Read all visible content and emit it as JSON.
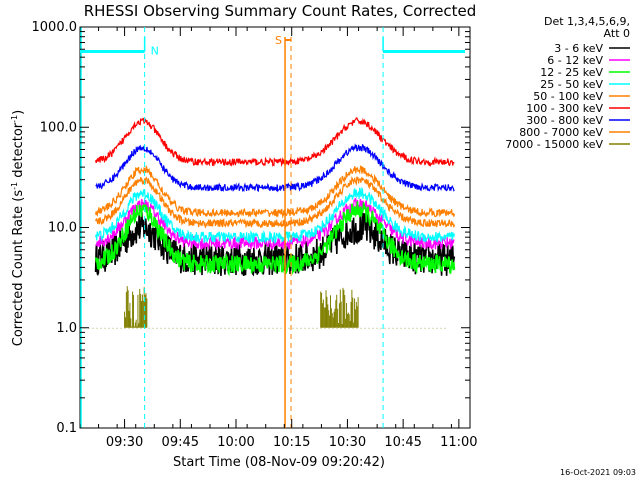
{
  "chart_data": {
    "type": "line",
    "title": "RHESSI Observing Summary Count Rates, Corrected",
    "xlabel": "Start Time (08-Nov-09 09:20:42)",
    "ylabel_main": "Corrected Count Rate (s",
    "ylabel_sup1": "-1",
    "ylabel_mid": " detector",
    "ylabel_sup2": "-1",
    "ylabel_end": ")",
    "y_scale": "log",
    "ylim": [
      0.1,
      1000
    ],
    "xlim_minutes": [
      9.3,
      11.05
    ],
    "x_ticks": [
      {
        "label": "09:30",
        "hour": 9.5
      },
      {
        "label": "09:45",
        "hour": 9.75
      },
      {
        "label": "10:00",
        "hour": 10.0
      },
      {
        "label": "10:15",
        "hour": 10.25
      },
      {
        "label": "10:30",
        "hour": 10.5
      },
      {
        "label": "10:45",
        "hour": 10.75
      },
      {
        "label": "11:00",
        "hour": 11.0
      }
    ],
    "y_ticks": [
      {
        "label": "0.1",
        "value": 0.1
      },
      {
        "label": "1.0",
        "value": 1.0
      },
      {
        "label": "10.0",
        "value": 10.0
      },
      {
        "label": "100.0",
        "value": 100.0
      },
      {
        "label": "1000.0",
        "value": 1000.0
      }
    ],
    "legend_header": [
      "Det 1,3,4,5,6,9,",
      "Att 0"
    ],
    "legend_placement": "right",
    "series": [
      {
        "name": "3 - 6 keV",
        "color": "#000000",
        "base": 4.8,
        "peak": 10.0,
        "noise": 0.35
      },
      {
        "name": "6 - 12 keV",
        "color": "#ff00ff",
        "base": 7.0,
        "peak": 17.0,
        "noise": 0.12
      },
      {
        "name": "12 - 25 keV",
        "color": "#00ff00",
        "base": 4.3,
        "peak": 15.0,
        "noise": 0.18
      },
      {
        "name": "25 - 50 keV",
        "color": "#00ffff",
        "base": 8.0,
        "peak": 22.0,
        "noise": 0.1
      },
      {
        "name": "50 - 100 keV",
        "color": "#ff8000",
        "base": 11.0,
        "peak": 30.0,
        "noise": 0.06
      },
      {
        "name": "100 - 300 keV",
        "color": "#ff0000",
        "base": 45.0,
        "peak": 115.0,
        "noise": 0.05
      },
      {
        "name": "300 - 800 keV",
        "color": "#0000ff",
        "base": 25.0,
        "peak": 63.0,
        "noise": 0.05
      },
      {
        "name": "800 - 7000 keV",
        "color": "#ff8000",
        "base": 14.0,
        "peak": 38.0,
        "noise": 0.06
      },
      {
        "name": "7000 - 15000 keV",
        "color": "#808000",
        "base": 1.0,
        "peak": 2.0,
        "noise": 0.0
      }
    ],
    "gap_color": "#ffff00",
    "night_markers": {
      "color": "#00ffff",
      "label": "N",
      "lines_hour": [
        9.59,
        10.66
      ],
      "bar_value": 570
    },
    "saa_marker": {
      "color": "#ff8000",
      "label": "S",
      "hour": 10.22
    },
    "night_regions": [
      [
        9.3,
        9.59
      ],
      [
        10.66,
        11.05
      ]
    ]
  },
  "footer": {
    "timestamp": "16-Oct-2021 09:03"
  }
}
